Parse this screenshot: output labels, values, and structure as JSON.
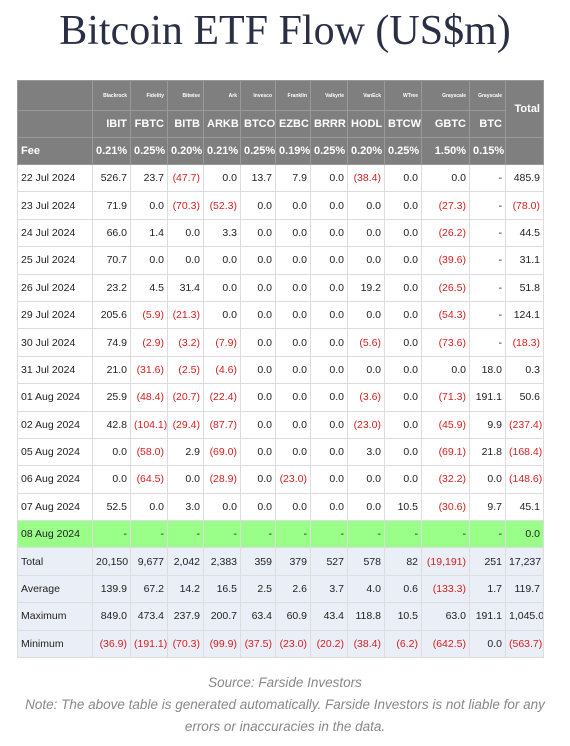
{
  "header": {
    "title": "Bitcoin ETF Flow (US$m)"
  },
  "table": {
    "columns": [
      {
        "issuer": "Blackrock",
        "ticker": "IBIT",
        "fee": "0.21%"
      },
      {
        "issuer": "Fidelity",
        "ticker": "FBTC",
        "fee": "0.25%"
      },
      {
        "issuer": "Bitwise",
        "ticker": "BITB",
        "fee": "0.20%"
      },
      {
        "issuer": "Ark",
        "ticker": "ARKB",
        "fee": "0.21%"
      },
      {
        "issuer": "Invesco",
        "ticker": "BTCO",
        "fee": "0.25%"
      },
      {
        "issuer": "Franklin",
        "ticker": "EZBC",
        "fee": "0.19%"
      },
      {
        "issuer": "Valkyrie",
        "ticker": "BRRR",
        "fee": "0.25%"
      },
      {
        "issuer": "VanEck",
        "ticker": "HODL",
        "fee": "0.20%"
      },
      {
        "issuer": "WTree",
        "ticker": "BTCW",
        "fee": "0.25%"
      },
      {
        "issuer": "Grayscale",
        "ticker": "GBTC",
        "fee": "1.50%"
      },
      {
        "issuer": "Grayscale",
        "ticker": "BTC",
        "fee": "0.15%"
      }
    ],
    "total_header": "Total",
    "fee_label": "Fee",
    "rows": [
      {
        "date": "22 Jul 2024",
        "cells": [
          "526.7",
          "23.7",
          "(47.7)",
          "0.0",
          "13.7",
          "7.9",
          "0.0",
          "(38.4)",
          "0.0",
          "0.0",
          "-"
        ],
        "total": "485.9"
      },
      {
        "date": "23 Jul 2024",
        "cells": [
          "71.9",
          "0.0",
          "(70.3)",
          "(52.3)",
          "0.0",
          "0.0",
          "0.0",
          "0.0",
          "0.0",
          "(27.3)",
          "-"
        ],
        "total": "(78.0)"
      },
      {
        "date": "24 Jul 2024",
        "cells": [
          "66.0",
          "1.4",
          "0.0",
          "3.3",
          "0.0",
          "0.0",
          "0.0",
          "0.0",
          "0.0",
          "(26.2)",
          "-"
        ],
        "total": "44.5"
      },
      {
        "date": "25 Jul 2024",
        "cells": [
          "70.7",
          "0.0",
          "0.0",
          "0.0",
          "0.0",
          "0.0",
          "0.0",
          "0.0",
          "0.0",
          "(39.6)",
          "-"
        ],
        "total": "31.1"
      },
      {
        "date": "26 Jul 2024",
        "cells": [
          "23.2",
          "4.5",
          "31.4",
          "0.0",
          "0.0",
          "0.0",
          "0.0",
          "19.2",
          "0.0",
          "(26.5)",
          "-"
        ],
        "total": "51.8"
      },
      {
        "date": "29 Jul 2024",
        "cells": [
          "205.6",
          "(5.9)",
          "(21.3)",
          "0.0",
          "0.0",
          "0.0",
          "0.0",
          "0.0",
          "0.0",
          "(54.3)",
          "-"
        ],
        "total": "124.1"
      },
      {
        "date": "30 Jul 2024",
        "cells": [
          "74.9",
          "(2.9)",
          "(3.2)",
          "(7.9)",
          "0.0",
          "0.0",
          "0.0",
          "(5.6)",
          "0.0",
          "(73.6)",
          "-"
        ],
        "total": "(18.3)"
      },
      {
        "date": "31 Jul 2024",
        "cells": [
          "21.0",
          "(31.6)",
          "(2.5)",
          "(4.6)",
          "0.0",
          "0.0",
          "0.0",
          "0.0",
          "0.0",
          "0.0",
          "18.0"
        ],
        "total": "0.3"
      },
      {
        "date": "01 Aug 2024",
        "cells": [
          "25.9",
          "(48.4)",
          "(20.7)",
          "(22.4)",
          "0.0",
          "0.0",
          "0.0",
          "(3.6)",
          "0.0",
          "(71.3)",
          "191.1"
        ],
        "total": "50.6"
      },
      {
        "date": "02 Aug 2024",
        "cells": [
          "42.8",
          "(104.1)",
          "(29.4)",
          "(87.7)",
          "0.0",
          "0.0",
          "0.0",
          "(23.0)",
          "0.0",
          "(45.9)",
          "9.9"
        ],
        "total": "(237.4)"
      },
      {
        "date": "05 Aug 2024",
        "cells": [
          "0.0",
          "(58.0)",
          "2.9",
          "(69.0)",
          "0.0",
          "0.0",
          "0.0",
          "3.0",
          "0.0",
          "(69.1)",
          "21.8"
        ],
        "total": "(168.4)"
      },
      {
        "date": "06 Aug 2024",
        "cells": [
          "0.0",
          "(64.5)",
          "0.0",
          "(28.9)",
          "0.0",
          "(23.0)",
          "0.0",
          "0.0",
          "0.0",
          "(32.2)",
          "0.0"
        ],
        "total": "(148.6)"
      },
      {
        "date": "07 Aug 2024",
        "cells": [
          "52.5",
          "0.0",
          "3.0",
          "0.0",
          "0.0",
          "0.0",
          "0.0",
          "0.0",
          "10.5",
          "(30.6)",
          "9.7"
        ],
        "total": "45.1"
      },
      {
        "date": "08 Aug 2024",
        "cells": [
          "-",
          "-",
          "-",
          "-",
          "-",
          "-",
          "-",
          "-",
          "-",
          "-",
          "-"
        ],
        "total": "0.0",
        "highlight": true
      }
    ],
    "summary": [
      {
        "label": "Total",
        "cells": [
          "20,150",
          "9,677",
          "2,042",
          "2,383",
          "359",
          "379",
          "527",
          "578",
          "82",
          "(19,191)",
          "251"
        ],
        "total": "17,237"
      },
      {
        "label": "Average",
        "cells": [
          "139.9",
          "67.2",
          "14.2",
          "16.5",
          "2.5",
          "2.6",
          "3.7",
          "4.0",
          "0.6",
          "(133.3)",
          "1.7"
        ],
        "total": "119.7"
      },
      {
        "label": "Maximum",
        "cells": [
          "849.0",
          "473.4",
          "237.9",
          "200.7",
          "63.4",
          "60.9",
          "43.4",
          "118.8",
          "10.5",
          "63.0",
          "191.1"
        ],
        "total": "1,045.0"
      },
      {
        "label": "Minimum",
        "cells": [
          "(36.9)",
          "(191.1)",
          "(70.3)",
          "(99.9)",
          "(37.5)",
          "(23.0)",
          "(20.2)",
          "(38.4)",
          "(6.2)",
          "(642.5)",
          "0.0"
        ],
        "total": "(563.7)"
      }
    ]
  },
  "footer": {
    "source": "Source: Farside Investors",
    "note": "Note: The above table is generated automatically. Farside Investors is not liable for any errors or inaccuracies in the data."
  }
}
